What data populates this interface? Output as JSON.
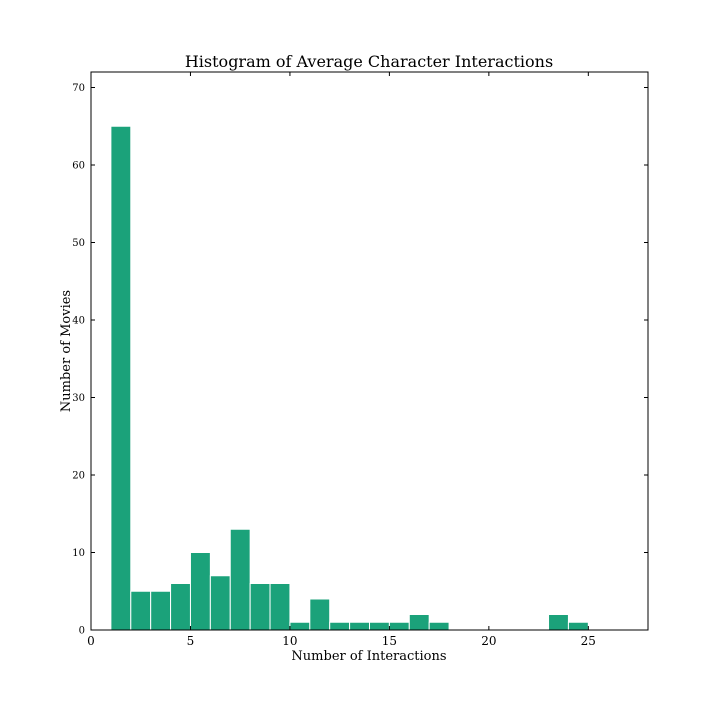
{
  "chart_data": {
    "type": "bar",
    "title": "Histogram of Average Character Interactions",
    "xlabel": "Number of Interactions",
    "ylabel": "Number of Movies",
    "xlim": [
      0,
      28
    ],
    "ylim": [
      0,
      72
    ],
    "xticks": [
      0,
      5,
      10,
      15,
      20,
      25
    ],
    "yticks": [
      0,
      10,
      20,
      30,
      40,
      50,
      60,
      70
    ],
    "bar_color": "#1ba27a",
    "bar_edge_color": "#ffffff",
    "bin_width": 1,
    "bins": [
      {
        "x": 1,
        "value": 65
      },
      {
        "x": 2,
        "value": 5
      },
      {
        "x": 3,
        "value": 5
      },
      {
        "x": 4,
        "value": 6
      },
      {
        "x": 5,
        "value": 10
      },
      {
        "x": 6,
        "value": 7
      },
      {
        "x": 7,
        "value": 13
      },
      {
        "x": 8,
        "value": 6
      },
      {
        "x": 9,
        "value": 6
      },
      {
        "x": 10,
        "value": 1
      },
      {
        "x": 11,
        "value": 4
      },
      {
        "x": 12,
        "value": 1
      },
      {
        "x": 13,
        "value": 1
      },
      {
        "x": 14,
        "value": 1
      },
      {
        "x": 15,
        "value": 1
      },
      {
        "x": 16,
        "value": 2
      },
      {
        "x": 17,
        "value": 1
      },
      {
        "x": 23,
        "value": 2
      },
      {
        "x": 24,
        "value": 1
      }
    ]
  }
}
